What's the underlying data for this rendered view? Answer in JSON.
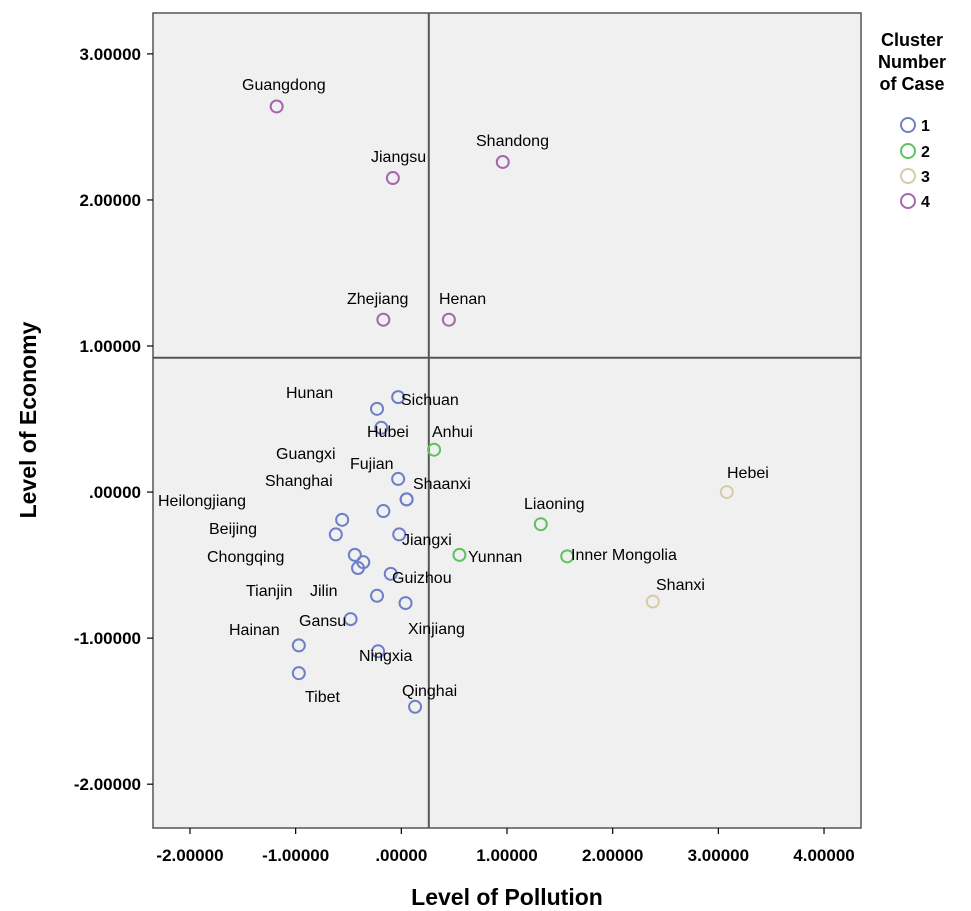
{
  "chart_data": {
    "type": "scatter",
    "xlabel": "Level of Pollution",
    "ylabel": "Level of Economy",
    "xlim": [
      -2.35,
      4.35
    ],
    "ylim": [
      -2.3,
      3.28
    ],
    "x_ticks": [
      {
        "value": -2,
        "label": "-2.00000"
      },
      {
        "value": -1,
        "label": "-1.00000"
      },
      {
        "value": 0,
        "label": ".00000"
      },
      {
        "value": 1,
        "label": "1.00000"
      },
      {
        "value": 2,
        "label": "2.00000"
      },
      {
        "value": 3,
        "label": "3.00000"
      },
      {
        "value": 4,
        "label": "4.00000"
      }
    ],
    "y_ticks": [
      {
        "value": 3,
        "label": "3.00000"
      },
      {
        "value": 2,
        "label": "2.00000"
      },
      {
        "value": 1,
        "label": "1.00000"
      },
      {
        "value": 0,
        "label": ".00000"
      },
      {
        "value": -1,
        "label": "-1.00000"
      },
      {
        "value": -2,
        "label": "-2.00000"
      }
    ],
    "reference_lines": {
      "x": 0.26,
      "y": 0.92
    },
    "grid": false,
    "legend": {
      "title_lines": [
        "Cluster",
        "Number",
        "of Case"
      ],
      "placement": "top-right",
      "entries": [
        {
          "label": "1",
          "cluster": 1
        },
        {
          "label": "2",
          "cluster": 2
        },
        {
          "label": "3",
          "cluster": 3
        },
        {
          "label": "4",
          "cluster": 4
        }
      ]
    },
    "cluster_colors": {
      "1": "#6f7fc7",
      "2": "#5fc25f",
      "3": "#d6cda6",
      "4": "#a666aa"
    },
    "points": [
      {
        "name": "Guangdong",
        "x": -1.18,
        "y": 2.64,
        "cluster": 4,
        "lx": -1.45,
        "ly": 2.78
      },
      {
        "name": "Jiangsu",
        "x": -0.08,
        "y": 2.15,
        "cluster": 4,
        "lx": -0.14,
        "ly": 2.29
      },
      {
        "name": "Shandong",
        "x": 0.96,
        "y": 2.26,
        "cluster": 4,
        "lx": 0.36,
        "ly": 2.37
      },
      {
        "name": "Zhejiang",
        "x": -0.17,
        "y": 1.18,
        "cluster": 4,
        "lx": -0.25,
        "ly": 1.31
      },
      {
        "name": "Henan",
        "x": 0.45,
        "y": 1.18,
        "cluster": 4,
        "lx": 0.18,
        "ly": 1.31
      },
      {
        "name": "Hunan",
        "x": -0.23,
        "y": 0.57,
        "cluster": 1,
        "lx": -0.49,
        "ly": 0.69
      },
      {
        "name": "Sichuan",
        "x": -0.03,
        "y": 0.65,
        "cluster": 1,
        "lx": 0.0,
        "ly": 0.62
      },
      {
        "name": "Hubei",
        "x": -0.19,
        "y": 0.44,
        "cluster": 1,
        "lx": -0.16,
        "ly": 0.41
      },
      {
        "name": "Anhui",
        "x": 0.31,
        "y": 0.29,
        "cluster": 2,
        "lx": 0.17,
        "ly": 0.41
      },
      {
        "name": "Guangxi",
        "x": -0.03,
        "y": 0.09,
        "cluster": 1,
        "lx": -0.37,
        "ly": 0.26
      },
      {
        "name": "Fujian",
        "x": 0.05,
        "y": -0.05,
        "cluster": 1,
        "lx": -0.12,
        "ly": 0.19
      },
      {
        "name": "Shanghai",
        "x": -0.17,
        "y": -0.13,
        "cluster": 1,
        "lx": -0.45,
        "ly": 0.07
      },
      {
        "name": "Shaanxi",
        "x": 0.05,
        "y": -0.05,
        "cluster": 1,
        "lx": 0.22,
        "ly": 0.05
      },
      {
        "name": "Heilongjiang",
        "x": -0.56,
        "y": -0.19,
        "cluster": 1,
        "lx": -0.91,
        "ly": -0.01
      },
      {
        "name": "Beijing",
        "x": -0.62,
        "y": -0.29,
        "cluster": 1,
        "lx": -0.86,
        "ly": -0.17
      },
      {
        "name": "Jiangxi",
        "x": -0.02,
        "y": -0.29,
        "cluster": 1,
        "lx": 0.14,
        "ly": -0.34
      },
      {
        "name": "Chongqing",
        "x": -0.44,
        "y": -0.43,
        "cluster": 1,
        "lx": -0.66,
        "ly": -0.45
      },
      {
        "name": "Chongqing2",
        "x": -0.36,
        "y": -0.48,
        "cluster": 1,
        "lx": null,
        "ly": null
      },
      {
        "name": "Tianjin",
        "x": -0.41,
        "y": -0.52,
        "cluster": 1,
        "lx": null,
        "ly": null
      },
      {
        "name": "Yunnan",
        "x": 0.55,
        "y": -0.43,
        "cluster": 2,
        "lx": 0.71,
        "ly": -0.47
      },
      {
        "name": "Liaoning",
        "x": 1.32,
        "y": -0.22,
        "cluster": 2,
        "lx": 1.25,
        "ly": -0.09
      },
      {
        "name": "Inner Mongolia",
        "x": 1.57,
        "y": -0.44,
        "cluster": 2,
        "lx": 1.72,
        "ly": -0.47
      },
      {
        "name": "Hebei",
        "x": 3.08,
        "y": 0.0,
        "cluster": 3,
        "lx": 3.02,
        "ly": 0.13
      },
      {
        "name": "Shanxi",
        "x": 2.38,
        "y": -0.75,
        "cluster": 3,
        "lx": 2.42,
        "ly": -0.63
      },
      {
        "name": "Guizhou",
        "x": -0.1,
        "y": -0.56,
        "cluster": 1,
        "lx": 0.07,
        "ly": -0.61
      },
      {
        "name": "Jilin",
        "x": -0.23,
        "y": -0.71,
        "cluster": 1,
        "lx": -0.36,
        "ly": -0.68
      },
      {
        "name": "Tianjin Label",
        "x": null,
        "y": null,
        "cluster": 1,
        "lx": -0.75,
        "ly": -0.68
      },
      {
        "name": "Xinjiang",
        "x": 0.04,
        "y": -0.76,
        "cluster": 1,
        "lx": 0.21,
        "ly": -0.95
      },
      {
        "name": "Gansu",
        "x": -0.48,
        "y": -0.87,
        "cluster": 1,
        "lx": -0.48,
        "ly": -0.87
      },
      {
        "name": "Hainan",
        "x": -0.97,
        "y": -1.05,
        "cluster": 1,
        "lx": -1.05,
        "ly": -0.95
      },
      {
        "name": "Ningxia",
        "x": -0.22,
        "y": -1.09,
        "cluster": 1,
        "lx": -0.13,
        "ly": -1.13
      },
      {
        "name": "Tibet",
        "x": -0.97,
        "y": -1.24,
        "cluster": 1,
        "lx": -0.74,
        "ly": -1.42
      },
      {
        "name": "Qinghai",
        "x": 0.13,
        "y": -1.47,
        "cluster": 1,
        "lx": 0.18,
        "ly": -1.35
      }
    ]
  }
}
